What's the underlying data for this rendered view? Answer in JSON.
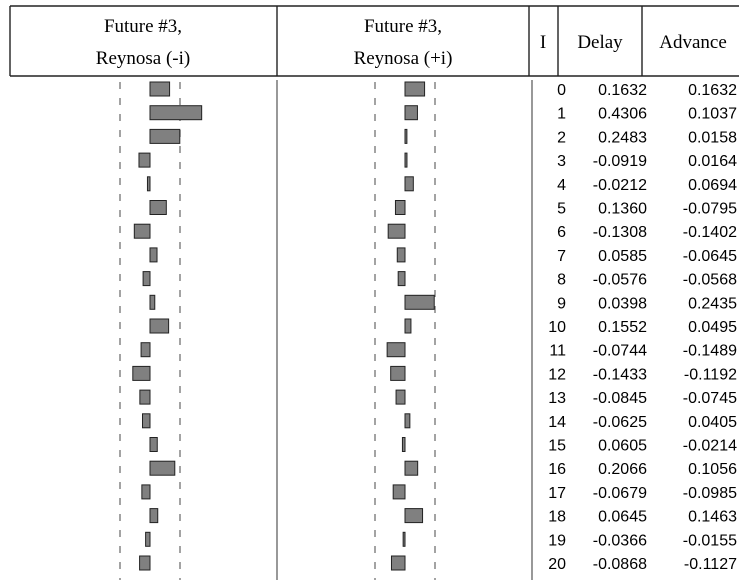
{
  "headers": {
    "col1_line1": "Future #3,",
    "col1_line2": "Reynosa (-i)",
    "col2_line1": "Future #3,",
    "col2_line2": "Reynosa (+i)",
    "lag": "I",
    "delay": "Delay",
    "advance": "Advance"
  },
  "chart_data": {
    "type": "bar",
    "orientation": "horizontal",
    "categories": [
      "0",
      "1",
      "2",
      "3",
      "4",
      "5",
      "6",
      "7",
      "8",
      "9",
      "10",
      "11",
      "12",
      "13",
      "14",
      "15",
      "16",
      "17",
      "18",
      "19",
      "20"
    ],
    "series": [
      {
        "name": "Delay",
        "values": [
          0.1632,
          0.4306,
          0.2483,
          -0.0919,
          -0.0212,
          0.136,
          -0.1308,
          0.0585,
          -0.0576,
          0.0398,
          0.1552,
          -0.0744,
          -0.1433,
          -0.0845,
          -0.0625,
          0.0605,
          0.2066,
          -0.0679,
          0.0645,
          -0.0366,
          -0.0868
        ]
      },
      {
        "name": "Advance",
        "values": [
          0.1632,
          0.1037,
          0.0158,
          0.0164,
          0.0694,
          -0.0795,
          -0.1402,
          -0.0645,
          -0.0568,
          0.2435,
          0.0495,
          -0.1489,
          -0.1192,
          -0.0745,
          0.0405,
          -0.0214,
          0.1056,
          -0.0985,
          0.1463,
          -0.0155,
          -0.1127
        ]
      }
    ],
    "labels": {
      "lags": [
        "0",
        "1",
        "2",
        "3",
        "4",
        "5",
        "6",
        "7",
        "8",
        "9",
        "10",
        "11",
        "12",
        "13",
        "14",
        "15",
        "16",
        "17",
        "18",
        "19",
        "20"
      ],
      "delay": [
        "0.1632",
        "0.4306",
        "0.2483",
        "-0.0919",
        "-0.0212",
        "0.1360",
        "-0.1308",
        "0.0585",
        "-0.0576",
        "0.0398",
        "0.1552",
        "-0.0744",
        "-0.1433",
        "-0.0845",
        "-0.0625",
        "0.0605",
        "0.2066",
        "-0.0679",
        "0.0645",
        "-0.0366",
        "-0.0868"
      ],
      "advance": [
        "0.1632",
        "0.1037",
        "0.0158",
        "0.0164",
        "0.0694",
        "-0.0795",
        "-0.1402",
        "-0.0645",
        "-0.0568",
        "0.2435",
        "0.0495",
        "-0.1489",
        "-0.1192",
        "-0.0745",
        "0.0405",
        "-0.0214",
        "0.1056",
        "-0.0985",
        "0.1463",
        "-0.0155",
        "-0.1127"
      ]
    },
    "confidence_limit": 0.25,
    "xlim": [
      -1,
      1
    ],
    "bar_color": "#808080",
    "bar_edge_color": "#222222"
  }
}
